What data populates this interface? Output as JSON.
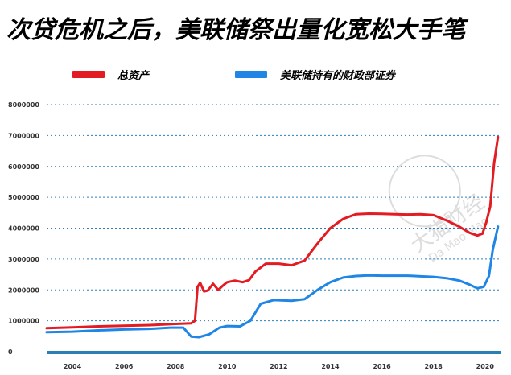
{
  "title": "次贷危机之后，美联储祭出量化宽松大手笔",
  "legend": [
    {
      "label": "总资产",
      "color": "#e31b23"
    },
    {
      "label": "美联储持有的财政部证券",
      "color": "#1f86e6"
    }
  ],
  "watermark": {
    "text": "大猫财经",
    "subtext": "Da Mao Mao"
  },
  "chart_data": {
    "type": "line",
    "title": "次贷危机之后，美联储祭出量化宽松大手笔",
    "xlabel": "",
    "ylabel": "",
    "xlim": [
      2003.0,
      2020.6
    ],
    "ylim": [
      0,
      8000000
    ],
    "x_ticks": [
      "2004",
      "2006",
      "2008",
      "2010",
      "2012",
      "2014",
      "2016",
      "2018",
      "2020"
    ],
    "y_ticks": [
      "0",
      "1000000",
      "2000000",
      "3000000",
      "4000000",
      "5000000",
      "6000000",
      "7000000",
      "8000000"
    ],
    "grid": true,
    "legend_position": "top",
    "series": [
      {
        "name": "总资产",
        "color": "#e31b23",
        "x": [
          2003.0,
          2004.0,
          2005.0,
          2006.0,
          2007.0,
          2008.0,
          2008.6,
          2008.75,
          2008.85,
          2008.95,
          2009.1,
          2009.25,
          2009.45,
          2009.65,
          2009.85,
          2010.0,
          2010.3,
          2010.6,
          2010.85,
          2011.1,
          2011.5,
          2012.0,
          2012.5,
          2013.0,
          2013.5,
          2014.0,
          2014.5,
          2015.0,
          2015.5,
          2016.0,
          2016.5,
          2017.0,
          2017.5,
          2018.0,
          2018.5,
          2019.0,
          2019.4,
          2019.7,
          2019.9,
          2020.05,
          2020.2,
          2020.35,
          2020.5
        ],
        "y": [
          760000,
          790000,
          820000,
          840000,
          860000,
          900000,
          920000,
          1000000,
          2100000,
          2230000,
          1950000,
          1980000,
          2200000,
          2000000,
          2150000,
          2250000,
          2300000,
          2250000,
          2320000,
          2600000,
          2850000,
          2850000,
          2800000,
          2950000,
          3500000,
          4000000,
          4300000,
          4450000,
          4470000,
          4460000,
          4450000,
          4440000,
          4450000,
          4420000,
          4250000,
          4050000,
          3850000,
          3760000,
          3820000,
          4200000,
          4700000,
          6100000,
          6950000
        ]
      },
      {
        "name": "美联储持有的财政部证券",
        "color": "#1f86e6",
        "x": [
          2003.0,
          2004.0,
          2005.0,
          2006.0,
          2007.0,
          2007.8,
          2008.3,
          2008.6,
          2008.9,
          2009.3,
          2009.7,
          2010.0,
          2010.5,
          2010.9,
          2011.3,
          2011.8,
          2012.5,
          2013.0,
          2013.5,
          2014.0,
          2014.5,
          2015.0,
          2015.5,
          2016.0,
          2016.5,
          2017.0,
          2017.5,
          2018.0,
          2018.5,
          2019.0,
          2019.4,
          2019.7,
          2019.95,
          2020.15,
          2020.3,
          2020.5
        ],
        "y": [
          630000,
          650000,
          690000,
          720000,
          740000,
          780000,
          780000,
          490000,
          470000,
          560000,
          780000,
          830000,
          820000,
          1000000,
          1550000,
          1670000,
          1650000,
          1700000,
          2000000,
          2250000,
          2400000,
          2450000,
          2470000,
          2460000,
          2460000,
          2460000,
          2440000,
          2420000,
          2380000,
          2300000,
          2170000,
          2050000,
          2100000,
          2450000,
          3300000,
          4050000
        ]
      }
    ]
  }
}
